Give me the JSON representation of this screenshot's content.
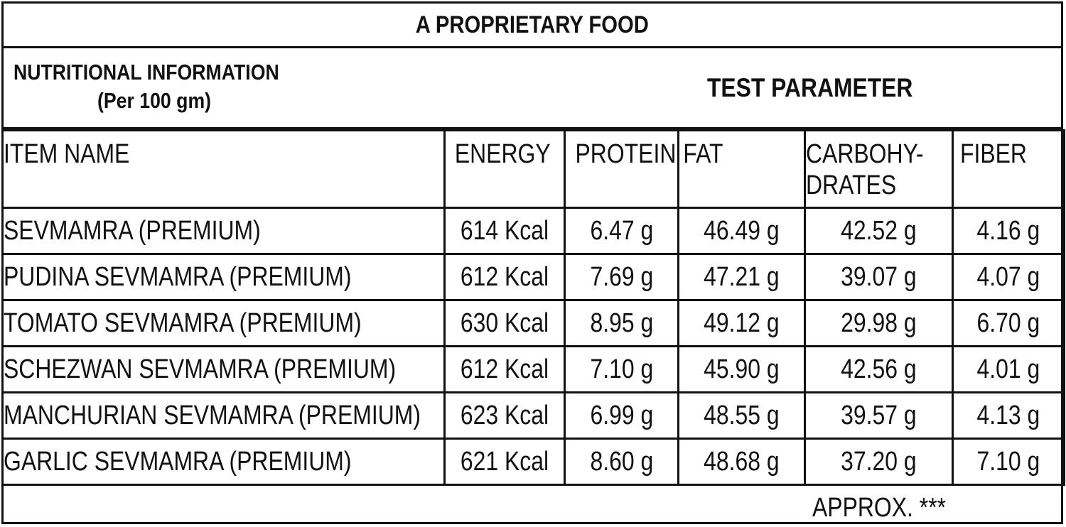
{
  "title": "A PROPRIETARY FOOD",
  "nutrition_heading": {
    "line1": "NUTRITIONAL INFORMATION",
    "line2": "(Per 100 gm)"
  },
  "test_parameter": "TEST PARAMETER",
  "columns": [
    "ITEM NAME",
    "ENERGY",
    "PROTEIN",
    "FAT",
    "CARBOHY-\nDRATES",
    "FIBER"
  ],
  "rows": [
    [
      "SEVMAMRA (PREMIUM)",
      "614 Kcal",
      "6.47 g",
      "46.49 g",
      "42.52 g",
      "4.16 g"
    ],
    [
      "PUDINA SEVMAMRA (PREMIUM)",
      "612 Kcal",
      "7.69 g",
      "47.21 g",
      "39.07 g",
      "4.07 g"
    ],
    [
      "TOMATO SEVMAMRA (PREMIUM)",
      "630 Kcal",
      "8.95 g",
      "49.12 g",
      "29.98 g",
      "6.70 g"
    ],
    [
      "SCHEZWAN SEVMAMRA (PREMIUM)",
      "612 Kcal",
      "7.10 g",
      "45.90 g",
      "42.56 g",
      "4.01 g"
    ],
    [
      "MANCHURIAN SEVMAMRA (PREMIUM)",
      "623 Kcal",
      "6.99 g",
      "48.55 g",
      "39.57 g",
      "4.13 g"
    ],
    [
      "GARLIC SEVMAMRA (PREMIUM)",
      "621 Kcal",
      "8.60 g",
      "48.68 g",
      "37.20 g",
      "7.10 g"
    ]
  ],
  "footnote": "APPROX. ***"
}
